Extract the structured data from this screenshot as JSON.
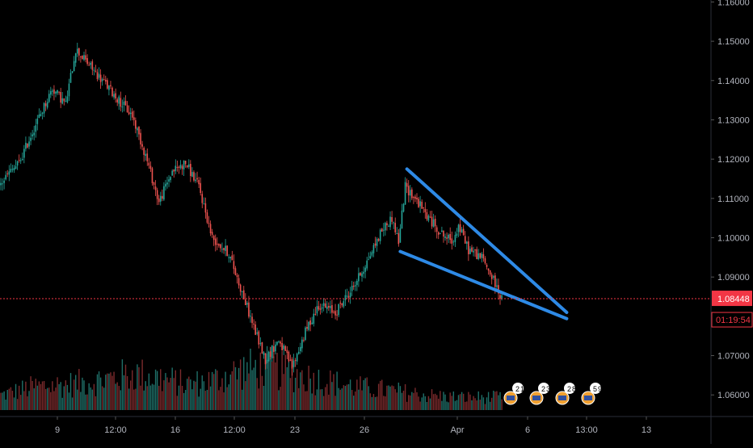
{
  "chart_data": {
    "type": "candlestick",
    "price_axis": {
      "ticks": [
        "1.16000",
        "1.15000",
        "1.14000",
        "1.13000",
        "1.12000",
        "1.11000",
        "1.10000",
        "1.09000",
        "1.07000",
        "1.06000"
      ],
      "range": [
        1.0545,
        1.1605
      ]
    },
    "time_axis": {
      "ticks": [
        "9",
        "12:00",
        "16",
        "12:00",
        "23",
        "26",
        "Apr",
        "6",
        "13:00",
        "13"
      ]
    },
    "current_price": {
      "value": 1.08448,
      "label": "1.08448",
      "countdown": "01:19:54"
    },
    "ohlc_knots": [
      [
        0,
        1.113
      ],
      [
        5,
        1.116
      ],
      [
        12,
        1.119
      ],
      [
        20,
        1.127
      ],
      [
        32,
        1.138
      ],
      [
        40,
        1.134
      ],
      [
        46,
        1.148
      ],
      [
        52,
        1.145
      ],
      [
        60,
        1.141
      ],
      [
        70,
        1.136
      ],
      [
        80,
        1.131
      ],
      [
        88,
        1.121
      ],
      [
        96,
        1.109
      ],
      [
        104,
        1.117
      ],
      [
        112,
        1.119
      ],
      [
        120,
        1.113
      ],
      [
        128,
        1.1
      ],
      [
        138,
        1.096
      ],
      [
        146,
        1.086
      ],
      [
        154,
        1.076
      ],
      [
        160,
        1.069
      ],
      [
        168,
        1.074
      ],
      [
        176,
        1.067
      ],
      [
        184,
        1.076
      ],
      [
        192,
        1.083
      ],
      [
        202,
        1.081
      ],
      [
        212,
        1.087
      ],
      [
        220,
        1.093
      ],
      [
        230,
        1.102
      ],
      [
        236,
        1.105
      ],
      [
        240,
        1.099
      ],
      [
        244,
        1.113
      ],
      [
        250,
        1.11
      ],
      [
        258,
        1.105
      ],
      [
        266,
        1.101
      ],
      [
        272,
        1.099
      ],
      [
        276,
        1.103
      ],
      [
        282,
        1.097
      ],
      [
        290,
        1.095
      ],
      [
        296,
        1.09
      ],
      [
        301,
        1.0855
      ]
    ],
    "volume_profile": [
      [
        0,
        0.35
      ],
      [
        20,
        0.55
      ],
      [
        40,
        0.6
      ],
      [
        60,
        0.7
      ],
      [
        80,
        0.85
      ],
      [
        96,
        0.75
      ],
      [
        112,
        0.6
      ],
      [
        128,
        0.7
      ],
      [
        146,
        0.95
      ],
      [
        160,
        1.0
      ],
      [
        176,
        0.85
      ],
      [
        192,
        0.7
      ],
      [
        212,
        0.55
      ],
      [
        236,
        0.45
      ],
      [
        256,
        0.35
      ],
      [
        276,
        0.3
      ],
      [
        301,
        0.3
      ]
    ],
    "trendlines": [
      {
        "from": [
          244,
          1.1175
        ],
        "to": [
          340,
          1.081
        ],
        "color": "#2e8ae6"
      },
      {
        "from": [
          240,
          1.0965
        ],
        "to": [
          340,
          1.0794
        ],
        "color": "#2e8ae6"
      }
    ],
    "event_markers": [
      "2",
      "1",
      "2",
      "3",
      "2",
      "8",
      "5",
      "9"
    ],
    "colors": {
      "up": "#26a69a",
      "down": "#ef5350",
      "trendline": "#2e8ae6",
      "price_tag": "#f23645",
      "background": "#000000",
      "axis_text": "#b2b5be"
    }
  }
}
